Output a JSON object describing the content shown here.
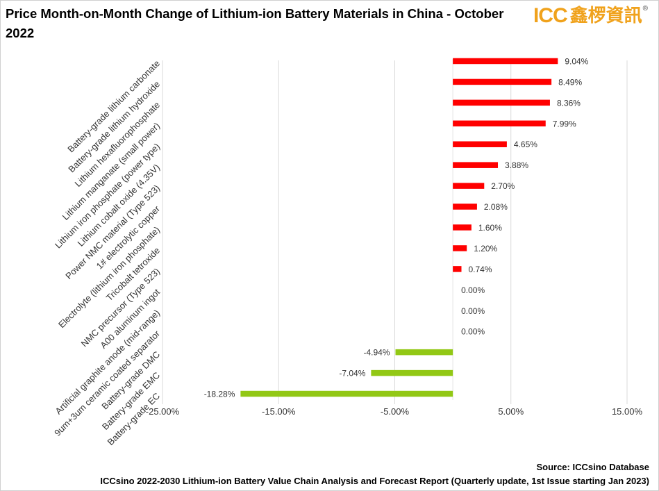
{
  "header": {
    "title": "Price Month-on-Month Change of Lithium-ion Battery Materials in China - October 2022",
    "logo_latin": "ICC",
    "logo_cjk": "鑫椤資訊",
    "logo_reg": "®"
  },
  "footer": {
    "source": "Source: ICCsino Database",
    "report": "ICCsino 2022-2030 Lithium-ion Battery Value Chain Analysis and Forecast Report  (Quarterly update, 1st Issue starting Jan 2023)"
  },
  "colors": {
    "positive": "#ff0000",
    "negative": "#92c815",
    "grid": "#d9d9d9"
  },
  "chart_data": {
    "type": "bar",
    "orientation": "horizontal",
    "categories": [
      "Battery-grade lithium carbonate",
      "Battery-grade lithium hydroxide",
      "Lithium hexafluorophosphate",
      "Lithium manganate (small power)",
      "Lithium iron phosphate (power type)",
      "Lithium cobalt oxide (4.35V)",
      "Power NMC material (Type 523)",
      "1# electrolytic copper",
      "Electrolyte (lithium iron phosphate)",
      "Tricobalt tetroxide",
      "NMC precursor (Type 523)",
      "A00 aluminum ingot",
      "Artificial graphite anode (mid-range)",
      "9um+3um ceramic coated separator",
      "Battery-grade DMC",
      "Battery-grade EMC",
      "Battery-grade EC"
    ],
    "values": [
      9.04,
      8.49,
      8.36,
      7.99,
      4.65,
      3.88,
      2.7,
      2.08,
      1.6,
      1.2,
      0.74,
      0.0,
      0.0,
      0.0,
      -4.94,
      -7.04,
      -18.28
    ],
    "value_labels": [
      "9.04%",
      "8.49%",
      "8.36%",
      "7.99%",
      "4.65%",
      "3.88%",
      "2.70%",
      "2.08%",
      "1.60%",
      "1.20%",
      "0.74%",
      "0.00%",
      "0.00%",
      "0.00%",
      "-4.94%",
      "-7.04%",
      "-18.28%"
    ],
    "xlim": [
      -25,
      15
    ],
    "x_ticks": [
      -25,
      -15,
      -5,
      5,
      15
    ],
    "x_tick_labels": [
      "-25.00%",
      "-15.00%",
      "-5.00%",
      "5.00%",
      "15.00%"
    ],
    "grid": true,
    "legend": "none"
  }
}
